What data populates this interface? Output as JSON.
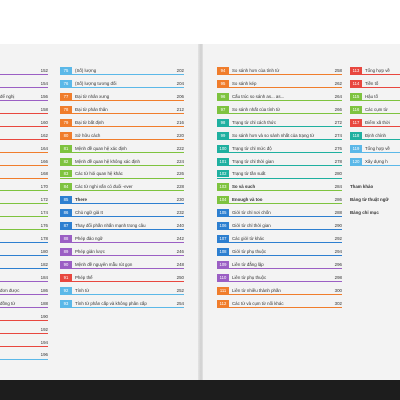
{
  "colors": {
    "purple": "#9b5fc4",
    "lightblue": "#5bb8e8",
    "blue": "#2d7fd0",
    "orange": "#f07d2c",
    "red": "#e8473f",
    "green": "#7ec33f",
    "teal": "#1fb0a0"
  },
  "left_page": {
    "left_column": [
      {
        "text": "",
        "page": "152",
        "bar": "#9b5fc4"
      },
      {
        "text": "",
        "page": "154",
        "bar": "#9b5fc4"
      },
      {
        "text": "để nghị",
        "page": "156",
        "bar": "#9b5fc4"
      },
      {
        "text": "",
        "page": "158",
        "bar": "#e8473f"
      },
      {
        "text": "",
        "page": "160",
        "bar": "#e8473f"
      },
      {
        "text": "",
        "page": "162",
        "bar": "#e8473f"
      },
      {
        "text": "",
        "page": "164",
        "bar": "#f07d2c"
      },
      {
        "text": "",
        "page": "166",
        "bar": "#f07d2c"
      },
      {
        "text": "",
        "page": "168",
        "bar": "#f07d2c"
      },
      {
        "text": "",
        "page": "170",
        "bar": "#7ec33f"
      },
      {
        "text": "",
        "page": "172",
        "bar": "#7ec33f"
      },
      {
        "text": "",
        "page": "174",
        "bar": "#7ec33f"
      },
      {
        "text": "",
        "page": "176",
        "bar": "#7ec33f"
      },
      {
        "text": "",
        "page": "178",
        "bar": "#2d7fd0"
      },
      {
        "text": "",
        "page": "180",
        "bar": "#2d7fd0"
      },
      {
        "text": "",
        "page": "182",
        "bar": "#2d7fd0"
      },
      {
        "text": "",
        "page": "184",
        "bar": "#9b5fc4"
      },
      {
        "text": "đơn được",
        "page": "186",
        "bar": "#9b5fc4"
      },
      {
        "text": "đồng từ",
        "page": "188",
        "bar": "#9b5fc4"
      },
      {
        "text": "",
        "page": "190",
        "bar": "#e8473f"
      },
      {
        "text": "",
        "page": "192",
        "bar": "#e8473f"
      },
      {
        "text": "",
        "page": "194",
        "bar": "#e8473f"
      },
      {
        "text": "",
        "page": "196",
        "bar": "#5bb8e8"
      }
    ],
    "right_column": [
      {
        "num": "75",
        "text": "(Số) lượng",
        "page": "202",
        "color": "#5bb8e8"
      },
      {
        "num": "76",
        "text": "(Số) lượng tương đối",
        "page": "204",
        "color": "#5bb8e8"
      },
      {
        "num": "77",
        "text": "Đại từ nhân xưng",
        "page": "206",
        "color": "#f07d2c"
      },
      {
        "num": "78",
        "text": "Đại từ phản thân",
        "page": "212",
        "color": "#f07d2c"
      },
      {
        "num": "79",
        "text": "Đại từ bất định",
        "page": "216",
        "color": "#f07d2c"
      },
      {
        "num": "80",
        "text": "Sở hữu cách",
        "page": "220",
        "color": "#f07d2c"
      },
      {
        "num": "81",
        "text": "Mệnh đề quan hệ xác định",
        "page": "222",
        "color": "#7ec33f"
      },
      {
        "num": "82",
        "text": "Mệnh đề quan hệ không xác định",
        "page": "224",
        "color": "#7ec33f"
      },
      {
        "num": "83",
        "text": "Các từ hỏi quan hệ khác",
        "page": "226",
        "color": "#7ec33f"
      },
      {
        "num": "84",
        "text": "Các từ nghi vấn có đuôi -ever",
        "page": "228",
        "color": "#7ec33f"
      },
      {
        "num": "85",
        "text": "There",
        "page": "230",
        "color": "#2d7fd0",
        "bold": true
      },
      {
        "num": "86",
        "text": "Chủ ngữ giả It",
        "page": "232",
        "color": "#2d7fd0"
      },
      {
        "num": "87",
        "text": "Thay đổi phần nhấn mạnh trong câu",
        "page": "240",
        "color": "#2d7fd0"
      },
      {
        "num": "88",
        "text": "Phép đảo ngữ",
        "page": "242",
        "color": "#9b5fc4"
      },
      {
        "num": "89",
        "text": "Phép giản lược",
        "page": "246",
        "color": "#9b5fc4"
      },
      {
        "num": "90",
        "text": "Mệnh đề nguyên mẫu rút gọn",
        "page": "248",
        "color": "#9b5fc4"
      },
      {
        "num": "91",
        "text": "Phép thế",
        "page": "250",
        "color": "#e8473f"
      },
      {
        "num": "92",
        "text": "Tính từ",
        "page": "252",
        "color": "#5bb8e8"
      },
      {
        "num": "93",
        "text": "Tính từ phân cấp và không phân cấp",
        "page": "254",
        "color": "#5bb8e8"
      }
    ]
  },
  "right_page": {
    "left_column": [
      {
        "num": "94",
        "text": "So sánh hơn của tính từ",
        "page": "258",
        "color": "#f07d2c"
      },
      {
        "num": "95",
        "text": "So sánh kép",
        "page": "262",
        "color": "#f07d2c"
      },
      {
        "num": "96",
        "text": "Cấu trúc so sánh as... as...",
        "page": "264",
        "color": "#7ec33f"
      },
      {
        "num": "97",
        "text": "So sánh nhất của tính từ",
        "page": "266",
        "color": "#7ec33f"
      },
      {
        "num": "98",
        "text": "Trạng từ chỉ cách thức",
        "page": "272",
        "color": "#1fb0a0"
      },
      {
        "num": "99",
        "text": "So sánh hơn và so sánh nhất của trạng từ",
        "page": "274",
        "color": "#1fb0a0"
      },
      {
        "num": "100",
        "text": "Trạng từ chỉ mức độ",
        "page": "276",
        "color": "#1fb0a0"
      },
      {
        "num": "101",
        "text": "Trạng từ chỉ thời gian",
        "page": "278",
        "color": "#1fb0a0"
      },
      {
        "num": "102",
        "text": "Trạng từ tần suất",
        "page": "280",
        "color": "#1fb0a0"
      },
      {
        "num": "103",
        "text": "So và such",
        "page": "284",
        "color": "#7ec33f",
        "bold": true
      },
      {
        "num": "104",
        "text": "Enough và too",
        "page": "286",
        "color": "#7ec33f",
        "bold": true
      },
      {
        "num": "105",
        "text": "Giới từ chỉ nơi chốn",
        "page": "288",
        "color": "#2d7fd0"
      },
      {
        "num": "106",
        "text": "Giới từ chỉ thời gian",
        "page": "290",
        "color": "#2d7fd0"
      },
      {
        "num": "107",
        "text": "Các giới từ khác",
        "page": "292",
        "color": "#2d7fd0"
      },
      {
        "num": "108",
        "text": "Giới từ phụ thuộc",
        "page": "294",
        "color": "#2d7fd0"
      },
      {
        "num": "109",
        "text": "Liên từ đẳng lập",
        "page": "296",
        "color": "#9b5fc4"
      },
      {
        "num": "110",
        "text": "Liên từ phụ thuộc",
        "page": "298",
        "color": "#9b5fc4"
      },
      {
        "num": "111",
        "text": "Liên từ nhiều thành phần",
        "page": "300",
        "color": "#f07d2c"
      },
      {
        "num": "112",
        "text": "Các từ và cụm từ nối khác",
        "page": "302",
        "color": "#f07d2c"
      }
    ],
    "right_column": [
      {
        "num": "113",
        "text": "Tổng hợp về",
        "color": "#e8473f"
      },
      {
        "num": "114",
        "text": "Tiền tố",
        "color": "#e8473f"
      },
      {
        "num": "115",
        "text": "Hậu tố",
        "color": "#7ec33f"
      },
      {
        "num": "116",
        "text": "Các cụm từ",
        "color": "#7ec33f"
      },
      {
        "num": "117",
        "text": "Điểm xã thời",
        "color": "#e8473f"
      },
      {
        "num": "118",
        "text": "Định chính",
        "color": "#1fb0a0"
      },
      {
        "num": "119",
        "text": "Tổng hợp về",
        "color": "#5bb8e8"
      },
      {
        "num": "120",
        "text": "Xây dựng h",
        "color": "#5bb8e8"
      }
    ],
    "plain_items": [
      "Tham khảo",
      "Bảng từ thuật ngữ",
      "Bảng chỉ mục"
    ]
  }
}
